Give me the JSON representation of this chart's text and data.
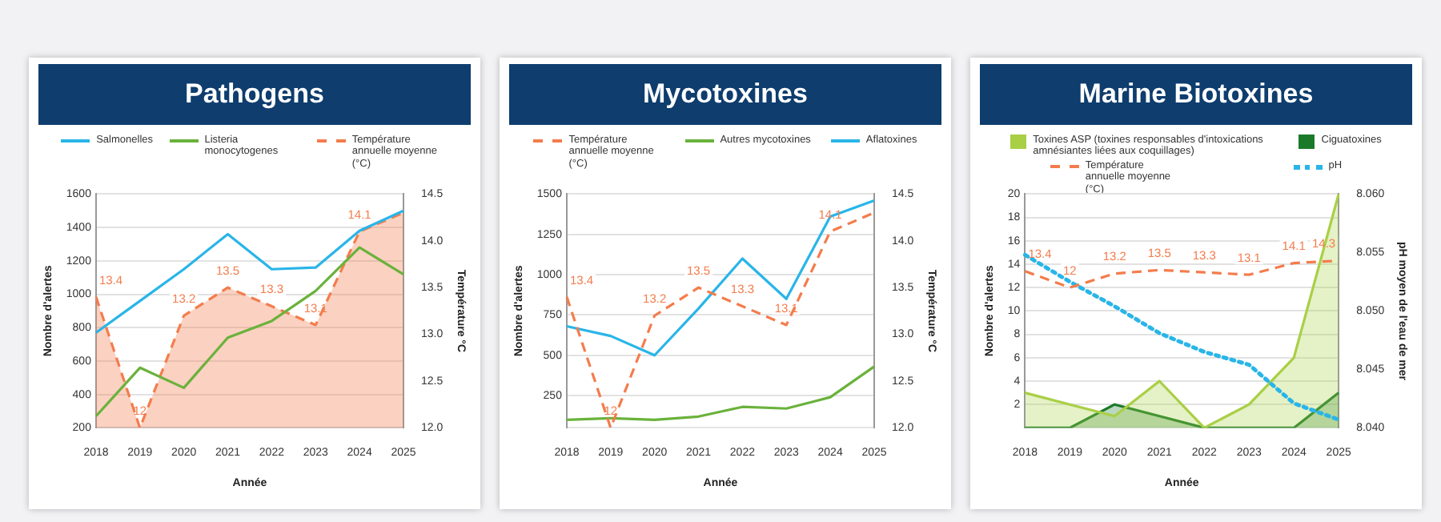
{
  "chart_data": [
    {
      "type": "line",
      "title": "Pathogens",
      "xlabel": "Année",
      "ylabel": "Nombre d'alertes",
      "y2label": "Température °C",
      "categories": [
        "2018",
        "2019",
        "2020",
        "2021",
        "2022",
        "2023",
        "2024",
        "2025"
      ],
      "series": [
        {
          "name": "Salmonelles",
          "color": "#29b5e8",
          "values": [
            770,
            960,
            1150,
            1360,
            1150,
            1160,
            1380,
            1500
          ]
        },
        {
          "name": "Listeria monocytogenes",
          "color": "#6ab23c",
          "values": [
            270,
            560,
            440,
            740,
            840,
            1020,
            1280,
            1120
          ]
        },
        {
          "name": "Température annuelle moyenne (°C)",
          "type": "area",
          "axis": "y2",
          "line_style": "dashed",
          "color": "#f47c4c",
          "values": [
            13.4,
            12,
            13.2,
            13.5,
            13.3,
            13.1,
            14.1,
            14.3
          ],
          "value_labels": [
            "13.4",
            "12",
            "13.2",
            "13.5",
            "13.3",
            "13.1",
            "14.1",
            null
          ]
        }
      ],
      "ylim": [
        200,
        1600
      ],
      "yticks": [
        200,
        400,
        600,
        800,
        1000,
        1200,
        1400,
        1600
      ],
      "y2lim": [
        12,
        14.5
      ],
      "y2ticks": [
        {
          "value": 12,
          "label": "12.0"
        },
        {
          "value": 12.5,
          "label": "12.5"
        },
        {
          "value": 13,
          "label": "13.0"
        },
        {
          "value": 13.5,
          "label": "13.5"
        },
        {
          "value": 14,
          "label": "14.0"
        },
        {
          "value": 14.5,
          "label": "14.5"
        }
      ],
      "grid": "y",
      "legend": "top",
      "marker": "none"
    },
    {
      "type": "line",
      "title": "Mycotoxines",
      "xlabel": "Année",
      "ylabel": "Nombre d'alertes",
      "y2label": "Température °C",
      "categories": [
        "2018",
        "2019",
        "2020",
        "2021",
        "2022",
        "2023",
        "2024",
        "2025"
      ],
      "series": [
        {
          "name": "Température annuelle moyenne (°C)",
          "axis": "y2",
          "line_style": "dashed",
          "color": "#f47c4c",
          "values": [
            13.4,
            12,
            13.2,
            13.5,
            13.3,
            13.1,
            14.1,
            14.3
          ],
          "value_labels": [
            "13.4",
            "12",
            "13.2",
            "13.5",
            "13.3",
            "13.1",
            "14.1",
            null
          ]
        },
        {
          "name": "Autres mycotoxines",
          "color": "#6ab23c",
          "values": [
            100,
            110,
            100,
            120,
            180,
            170,
            240,
            430
          ]
        },
        {
          "name": "Aflatoxines",
          "color": "#29b5e8",
          "values": [
            680,
            620,
            500,
            790,
            1100,
            850,
            1360,
            1460
          ]
        }
      ],
      "ylim": [
        50,
        1500
      ],
      "yticks": [
        250,
        500,
        750,
        1000,
        1250,
        1500
      ],
      "y2lim": [
        12,
        14.5
      ],
      "y2ticks": [
        {
          "value": 12,
          "label": "12.0"
        },
        {
          "value": 12.5,
          "label": "12.5"
        },
        {
          "value": 13,
          "label": "13.0"
        },
        {
          "value": 13.5,
          "label": "13.5"
        },
        {
          "value": 14,
          "label": "14.0"
        },
        {
          "value": 14.5,
          "label": "14.5"
        }
      ],
      "grid": "y",
      "legend": "top",
      "marker": "none"
    },
    {
      "type": "line",
      "title": "Marine Biotoxines",
      "xlabel": "Année",
      "ylabel": "Nombre d'alertes",
      "y2label": "pH moyen de l'eau de mer",
      "categories": [
        "2018",
        "2019",
        "2020",
        "2021",
        "2022",
        "2023",
        "2024",
        "2025"
      ],
      "series": [
        {
          "name": "Toxines ASP (toxines responsables d'intoxications amnésiantes liées aux coquillages)",
          "type": "area",
          "color": "#a9cf45",
          "values": [
            3,
            2,
            1,
            4,
            0,
            2,
            6,
            20
          ]
        },
        {
          "name": "Ciguatoxines",
          "type": "area",
          "color": "#1b7a2a",
          "values": [
            0,
            0,
            2,
            1,
            0,
            0,
            0,
            3
          ]
        },
        {
          "name": "Température annuelle moyenne (°C)",
          "line_style": "dashed",
          "color": "#f47c4c",
          "values": [
            13.4,
            12,
            13.2,
            13.5,
            13.3,
            13.1,
            14.1,
            14.3
          ],
          "value_labels": [
            "13.4",
            "12",
            "13.2",
            "13.5",
            "13.3",
            "13.1",
            "14.1",
            "14.3"
          ]
        },
        {
          "name": "pH",
          "axis": "y2",
          "line_style": "dotted",
          "color": "#29b5e8",
          "values": [
            8.0548,
            8.0525,
            8.0504,
            8.0481,
            8.0465,
            8.0454,
            8.0421,
            8.0407
          ]
        }
      ],
      "ylim": [
        0,
        20
      ],
      "yticks": [
        2,
        4,
        6,
        8,
        10,
        12,
        14,
        16,
        18,
        20
      ],
      "y2lim": [
        8.04,
        8.06
      ],
      "y2ticks": [
        {
          "value": 8.04,
          "label": "8.040"
        },
        {
          "value": 8.045,
          "label": "8.045"
        },
        {
          "value": 8.05,
          "label": "8.050"
        },
        {
          "value": 8.055,
          "label": "8.055"
        },
        {
          "value": 8.06,
          "label": "8.060"
        }
      ],
      "grid": "y",
      "legend": "top",
      "marker": "none"
    }
  ]
}
